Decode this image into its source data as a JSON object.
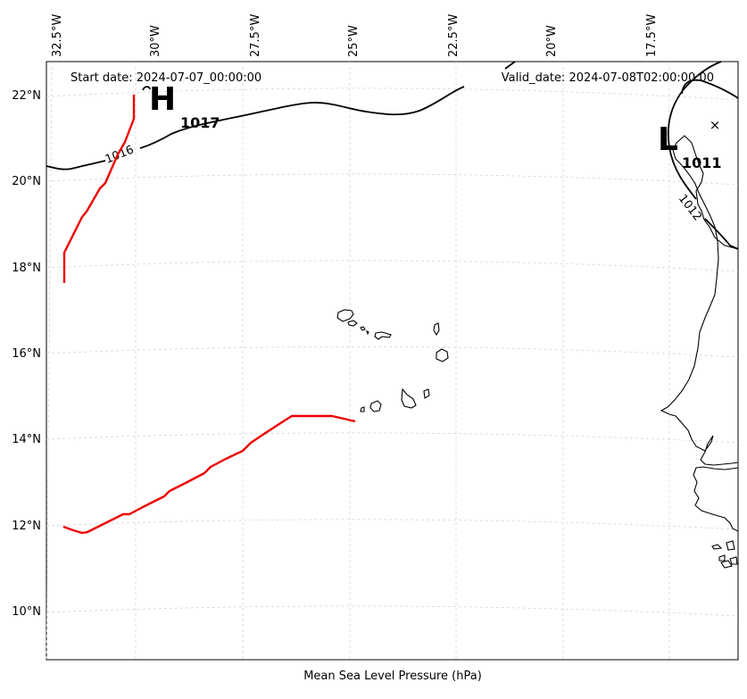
{
  "header": {
    "start_date": "Start date: 2024-07-07_00:00:00",
    "valid_date": "Valid_date: 2024-07-08T02:00:00.00"
  },
  "footer": {
    "caption": "Mean Sea Level Pressure (hPa)"
  },
  "longitude_labels": [
    "32.5°W",
    "30°W",
    "27.5°W",
    "25°W",
    "22.5°W",
    "20°W",
    "17.5°W"
  ],
  "latitude_labels": [
    "22°N",
    "20°N",
    "18°N",
    "16°N",
    "14°N",
    "12°N",
    "10°N"
  ],
  "pressure_systems": {
    "high": {
      "symbol": "H",
      "value": "1017"
    },
    "low": {
      "symbol": "L",
      "value": "1011",
      "marker": "×"
    }
  },
  "isobar_labels": [
    "1016",
    "1012"
  ],
  "colors": {
    "track": "#ee0000",
    "isobar": "#000000",
    "grid": "#cfcfcf"
  }
}
